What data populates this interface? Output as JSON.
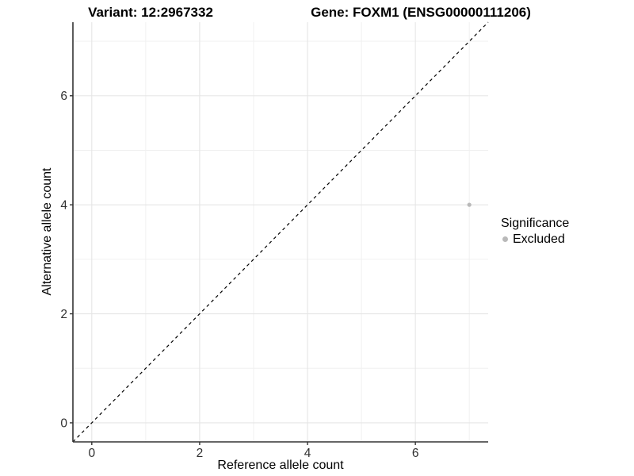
{
  "chart_data": {
    "type": "scatter",
    "title_left": "Variant: 12:2967332",
    "title_right": "Gene: FOXM1 (ENSG00000111206)",
    "xlabel": "Reference allele count",
    "ylabel": "Alternative allele count",
    "xlim": [
      -0.35,
      7.35
    ],
    "ylim": [
      -0.35,
      7.35
    ],
    "x_ticks": [
      0,
      2,
      4,
      6
    ],
    "y_ticks": [
      0,
      2,
      4,
      6
    ],
    "x_minor_ticks": [
      1,
      3,
      5,
      7
    ],
    "y_minor_ticks": [
      1,
      3,
      5,
      7
    ],
    "grid": true,
    "identity_line": {
      "type": "dashed",
      "slope": 1,
      "intercept": 0,
      "color": "#000000"
    },
    "series": [
      {
        "name": "Excluded",
        "color": "#b9b9b9",
        "points": [
          {
            "x": 7,
            "y": 4
          }
        ]
      }
    ],
    "legend": {
      "title": "Significance",
      "position": "right",
      "entries": [
        {
          "label": "Excluded",
          "color": "#b9b9b9"
        }
      ]
    },
    "colors": {
      "grid_major": "#e5e5e5",
      "grid_minor": "#f0f0f0",
      "axis_line": "#333333",
      "tick_mark": "#333333",
      "tick_label": "#303030",
      "background": "#ffffff"
    }
  }
}
